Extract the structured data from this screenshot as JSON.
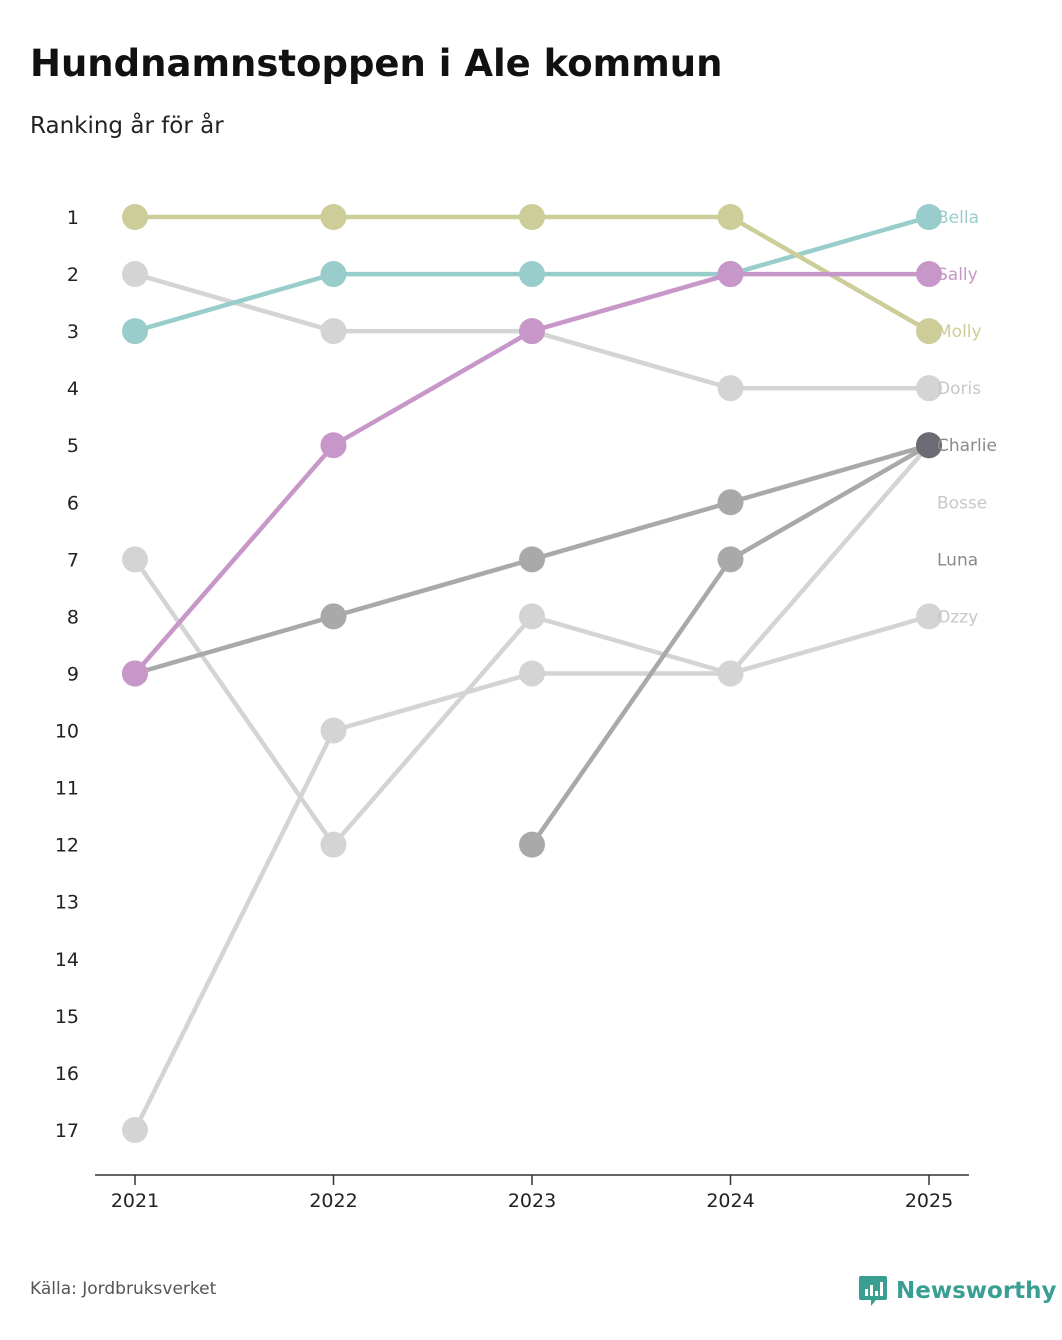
{
  "title": "Hundnamnstoppen i Ale kommun",
  "subtitle": "Ranking år för år",
  "source": "Källa: Jordbruksverket",
  "brand": "Newsworthy",
  "colors": {
    "bella": "#99cdcb",
    "sally": "#c797c9",
    "molly": "#cdcd9a",
    "doris": "#d4d4d4",
    "charlie": "#6b6b73",
    "bosse": "#d4d4d4",
    "luna": "#a9a9a9",
    "ozzy": "#d4d4d4",
    "axis": "#333333",
    "brand": "#3a9f93"
  },
  "chart_data": {
    "type": "line",
    "title": "Hundnamnstoppen i Ale kommun",
    "subtitle": "Ranking år för år",
    "x": [
      "2021",
      "2022",
      "2023",
      "2024",
      "2025"
    ],
    "y_ticks": [
      "1",
      "2",
      "3",
      "4",
      "5",
      "6",
      "7",
      "8",
      "9",
      "10",
      "11",
      "12",
      "13",
      "14",
      "15",
      "16",
      "17"
    ],
    "ylim": [
      1,
      17
    ],
    "y_inverted": true,
    "series": [
      {
        "name": "Doris",
        "color_key": "doris",
        "label_color": "#c8c8c8",
        "values": [
          2,
          3,
          3,
          4,
          4
        ]
      },
      {
        "name": "Ozzy",
        "color_key": "ozzy",
        "label_color": "#c8c8c8",
        "values": [
          7,
          12,
          8,
          9,
          8
        ]
      },
      {
        "name": "Bosse",
        "color_key": "bosse",
        "label_color": "#c8c8c8",
        "values": [
          17,
          10,
          9,
          9,
          5
        ]
      },
      {
        "name": "Luna",
        "color_key": "luna",
        "label_color": "#8a8a8a",
        "values": [
          null,
          null,
          12,
          7,
          5
        ]
      },
      {
        "name": "Charlie",
        "color_key": "charlie",
        "label_color": "#8a8a8a",
        "line_color": "#a9a9a9",
        "dot_color": "#a9a9a9",
        "last_dot_color": "#6b6b73",
        "values": [
          9,
          8,
          7,
          6,
          5
        ]
      },
      {
        "name": "Bella",
        "color_key": "bella",
        "label_color": "#99cdcb",
        "values": [
          3,
          2,
          2,
          2,
          1
        ]
      },
      {
        "name": "Molly",
        "color_key": "molly",
        "label_color": "#cdcd9a",
        "values": [
          1,
          1,
          1,
          1,
          3
        ]
      },
      {
        "name": "Sally",
        "color_key": "sally",
        "label_color": "#c797c9",
        "values": [
          9,
          5,
          3,
          2,
          2
        ]
      }
    ],
    "end_labels": [
      "Bella",
      "Sally",
      "Molly",
      "Doris",
      "Charlie",
      "Bosse",
      "Luna",
      "Ozzy"
    ]
  }
}
